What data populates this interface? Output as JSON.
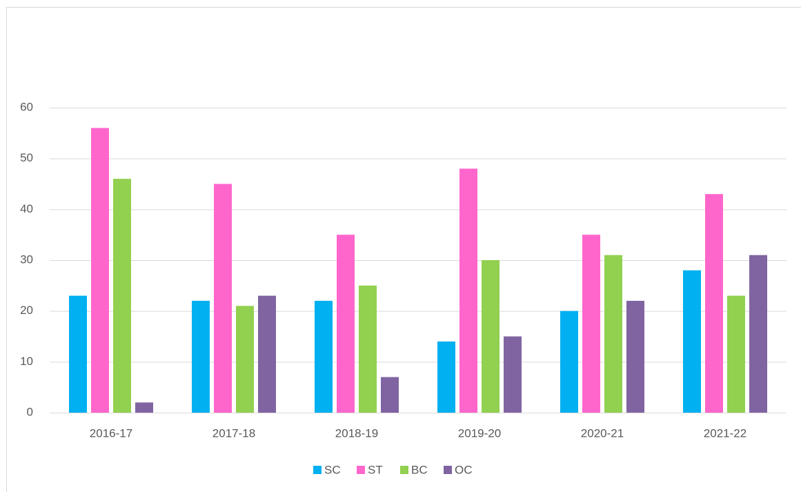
{
  "chart_data": {
    "type": "bar",
    "categories": [
      "2016-17",
      "2017-18",
      "2018-19",
      "2019-20",
      "2020-21",
      "2021-22"
    ],
    "series": [
      {
        "name": "SC",
        "color": "#00b0f0",
        "values": [
          23,
          22,
          22,
          14,
          20,
          28
        ]
      },
      {
        "name": "ST",
        "color": "#ff66cc",
        "values": [
          56,
          45,
          35,
          48,
          35,
          43
        ]
      },
      {
        "name": "BC",
        "color": "#92d050",
        "values": [
          46,
          21,
          25,
          30,
          31,
          23
        ]
      },
      {
        "name": "OC",
        "color": "#8064a2",
        "values": [
          2,
          23,
          7,
          15,
          22,
          31
        ]
      }
    ],
    "ylim": [
      0,
      60
    ],
    "yticks": [
      0,
      10,
      20,
      30,
      40,
      50,
      60
    ],
    "grid": true,
    "legend": "bottom"
  }
}
